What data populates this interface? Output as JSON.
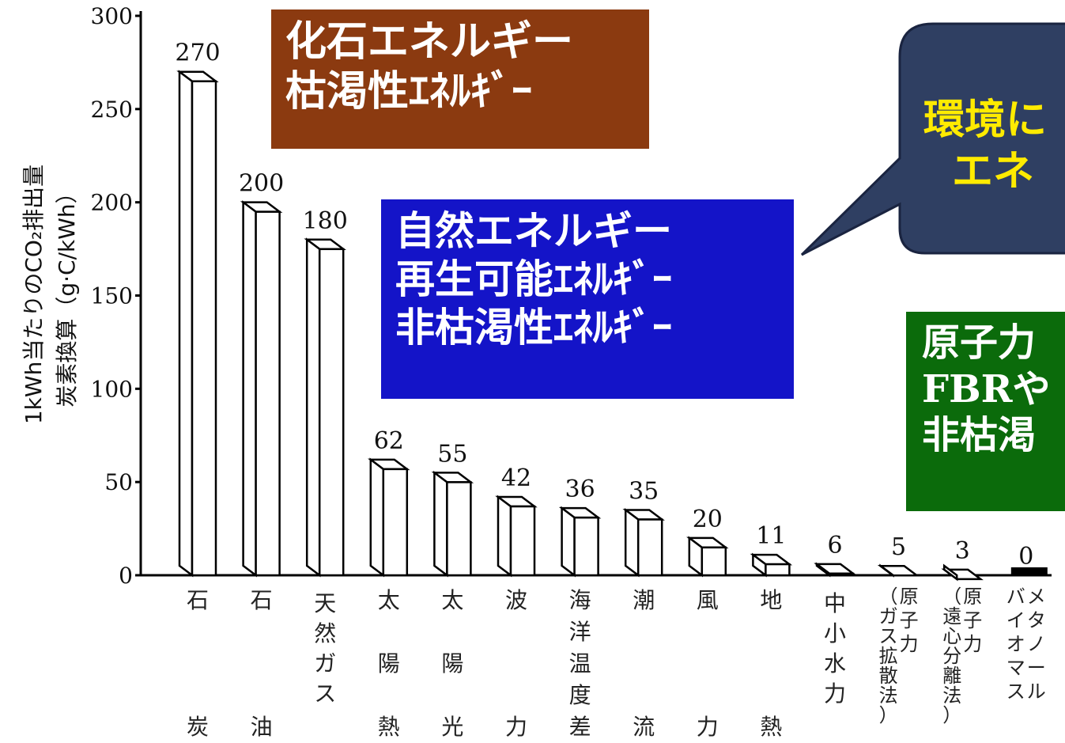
{
  "colors": {
    "fossil_box": "#8b3a10",
    "natural_box": "#1414c8",
    "nuclear_box": "#0b6b0b",
    "callout_fill": "#2f3f62",
    "callout_text": "#ffeb00",
    "bar_fill": "#ffffff",
    "bar_stroke": "#000000",
    "methanol_bar": "#000000"
  },
  "chart_data": {
    "type": "bar",
    "ylabel": "1kWh当たりのCO₂排出量\n炭素換算（g·C/kWh）",
    "ylim": [
      0,
      300
    ],
    "yticks": [
      0,
      50,
      100,
      150,
      200,
      250,
      300
    ],
    "grid": false,
    "categories": [
      {
        "lines": [
          "石",
          "",
          "",
          "",
          "炭"
        ]
      },
      {
        "lines": [
          "石",
          "",
          "",
          "",
          "油"
        ]
      },
      {
        "lines": [
          "天",
          "然",
          "ガ",
          "ス"
        ]
      },
      {
        "lines": [
          "太",
          "",
          "陽",
          "",
          "熱"
        ]
      },
      {
        "lines": [
          "太",
          "",
          "陽",
          "",
          "光"
        ]
      },
      {
        "lines": [
          "波",
          "",
          "",
          "",
          "力"
        ]
      },
      {
        "lines": [
          "海",
          "洋",
          "温",
          "度",
          "差"
        ]
      },
      {
        "lines": [
          "潮",
          "",
          "",
          "",
          "流"
        ]
      },
      {
        "lines": [
          "風",
          "",
          "",
          "",
          "力"
        ]
      },
      {
        "lines": [
          "地",
          "",
          "",
          "",
          "熱"
        ]
      },
      {
        "lines": [
          "中",
          "小",
          "水",
          "力"
        ]
      },
      {
        "cols": [
          "（ガス拡散法）",
          "原子力"
        ]
      },
      {
        "cols": [
          "（遠心分離法）",
          "原子力"
        ]
      },
      {
        "cols": [
          "バイオマス",
          "メタノール"
        ]
      }
    ],
    "values": [
      270,
      200,
      180,
      62,
      55,
      42,
      36,
      35,
      20,
      11,
      6,
      5,
      3,
      0
    ]
  },
  "overlays": {
    "fossil": [
      "化石エネルギー",
      "枯渇性ｴﾈﾙｷﾞｰ"
    ],
    "natural": [
      "自然エネルギー",
      "再生可能ｴﾈﾙｷﾞｰ",
      "非枯渇性ｴﾈﾙｷﾞｰ"
    ],
    "nuclear": [
      "原子力",
      "FBRや",
      "非枯渇"
    ],
    "callout": [
      "環境に",
      "エネ"
    ]
  }
}
